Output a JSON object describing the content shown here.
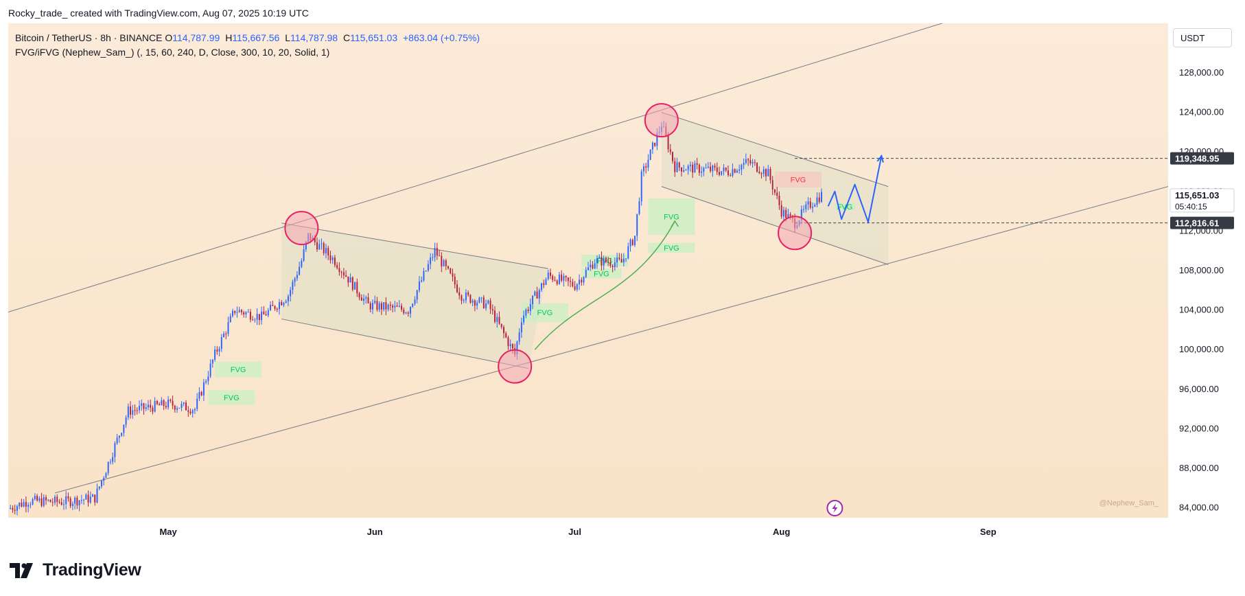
{
  "header": {
    "attribution": "Rocky_trade_ created with TradingView.com, Aug 07, 2025 10:19 UTC"
  },
  "legend": {
    "symbol": "Bitcoin / TetherUS · 8h · BINANCE",
    "open_label": "O",
    "open": "114,787.99",
    "high_label": "H",
    "high": "115,667.56",
    "low_label": "L",
    "low": "114,787.98",
    "close_label": "C",
    "close": "115,651.03",
    "change": "+863.04 (+0.75%)",
    "indicator": "FVG/iFVG (Nephew_Sam_) (, 15, 60, 240, D, Close, 300, 10, 20, Solid, 1)"
  },
  "currency": "USDT",
  "watermark": "@Nephew_Sam_",
  "brand": {
    "name": "TradingView"
  },
  "colors": {
    "background": "#fae9d4",
    "pane": "#ffffff",
    "up": "#2962ff",
    "down": "#b71c3a",
    "fvg_bull": "#c8f0c4",
    "fvg_bull_text": "#00c853",
    "fvg_bear": "#f6c9c0",
    "fvg_bear_text": "#f23645",
    "circle_fill": "#f4a8b4",
    "circle_stroke": "#e91e63",
    "channel_line": "#787b86",
    "projection": "#2962ff",
    "arrow_green": "#4caf50"
  },
  "chart_data": {
    "type": "candlestick",
    "title": "Bitcoin / TetherUS · 8h · BINANCE",
    "timeframe": "8h",
    "x_axis": {
      "labels": [
        "May",
        "Jun",
        "Jul",
        "Aug",
        "Sep"
      ],
      "range": [
        "2025-04-07",
        "2025-09-28"
      ]
    },
    "y_axis": {
      "ylim": [
        83000,
        133000
      ],
      "ticks": [
        84000,
        88000,
        92000,
        96000,
        100000,
        104000,
        108000,
        112000,
        116000,
        120000,
        124000,
        128000
      ],
      "tick_labels": [
        "84,000.00",
        "88,000.00",
        "92,000.00",
        "96,000.00",
        "100,000.00",
        "104,000.00",
        "108,000.00",
        "112,000.00",
        "116,000.00",
        "120,000.00",
        "124,000.00",
        "128,000.00"
      ]
    },
    "price_labels": [
      {
        "value": 119348.95,
        "text": "119,348.95",
        "style": "dark"
      },
      {
        "value": 115651.03,
        "text": "115,651.03",
        "style": "light",
        "sub": "05:40:15"
      },
      {
        "value": 112816.61,
        "text": "112,816.61",
        "style": "dark"
      }
    ],
    "horizontal_levels": [
      119348.95,
      112816.61
    ],
    "series_path": [
      [
        "2025-04-07",
        83900
      ],
      [
        "2025-04-10",
        84700
      ],
      [
        "2025-04-15",
        84600
      ],
      [
        "2025-04-20",
        85000
      ],
      [
        "2025-04-22",
        88500
      ],
      [
        "2025-04-25",
        93800
      ],
      [
        "2025-05-01",
        94500
      ],
      [
        "2025-05-05",
        94000
      ],
      [
        "2025-05-08",
        99500
      ],
      [
        "2025-05-11",
        104000
      ],
      [
        "2025-05-15",
        103300
      ],
      [
        "2025-05-19",
        105500
      ],
      [
        "2025-05-21",
        109000
      ],
      [
        "2025-05-22",
        111500
      ],
      [
        "2025-05-26",
        109000
      ],
      [
        "2025-05-31",
        104500
      ],
      [
        "2025-06-06",
        104000
      ],
      [
        "2025-06-10",
        110000
      ],
      [
        "2025-06-14",
        105500
      ],
      [
        "2025-06-18",
        104500
      ],
      [
        "2025-06-22",
        99500
      ],
      [
        "2025-06-23",
        103200
      ],
      [
        "2025-06-27",
        107500
      ],
      [
        "2025-07-01",
        106500
      ],
      [
        "2025-07-04",
        109000
      ],
      [
        "2025-07-08",
        108800
      ],
      [
        "2025-07-10",
        111500
      ],
      [
        "2025-07-11",
        117500
      ],
      [
        "2025-07-14",
        122800
      ],
      [
        "2025-07-16",
        118500
      ],
      [
        "2025-07-21",
        118200
      ],
      [
        "2025-07-24",
        118000
      ],
      [
        "2025-07-27",
        119000
      ],
      [
        "2025-07-30",
        117800
      ],
      [
        "2025-08-01",
        114000
      ],
      [
        "2025-08-03",
        112800
      ],
      [
        "2025-08-05",
        114500
      ],
      [
        "2025-08-07",
        115651
      ]
    ],
    "channels": [
      {
        "name": "ascending",
        "lines": [
          [
            [
              "2025-04-07",
              103800
            ],
            [
              "2025-09-07",
              135700
            ]
          ],
          [
            [
              "2025-04-14",
              85500
            ],
            [
              "2025-09-28",
              116500
            ]
          ]
        ]
      },
      {
        "name": "flag-1",
        "lines": [
          [
            [
              "2025-05-18",
              112800
            ],
            [
              "2025-06-27",
              108200
            ]
          ],
          [
            [
              "2025-05-18",
              103100
            ],
            [
              "2025-06-24",
              98100
            ]
          ]
        ]
      },
      {
        "name": "flag-2",
        "lines": [
          [
            [
              "2025-07-14",
              124000
            ],
            [
              "2025-08-17",
              116500
            ]
          ],
          [
            [
              "2025-07-14",
              116500
            ],
            [
              "2025-08-17",
              108600
            ]
          ]
        ]
      }
    ],
    "circles": [
      {
        "date": "2025-05-21",
        "price": 112300
      },
      {
        "date": "2025-06-22",
        "price": 98300
      },
      {
        "date": "2025-07-14",
        "price": 123200
      },
      {
        "date": "2025-08-03",
        "price": 111800
      }
    ],
    "fvg_zones": [
      {
        "label": "FVG",
        "kind": "bull",
        "from": "2025-05-08",
        "to": "2025-05-15",
        "low": 97200,
        "high": 98800
      },
      {
        "label": "FVG",
        "kind": "bull",
        "from": "2025-05-07",
        "to": "2025-05-14",
        "low": 94400,
        "high": 95900
      },
      {
        "label": "FVG",
        "kind": "bull",
        "from": "2025-06-23",
        "to": "2025-06-30",
        "low": 102800,
        "high": 104700
      },
      {
        "label": "FVG",
        "kind": "bull",
        "from": "2025-07-02",
        "to": "2025-07-09",
        "low": 108400,
        "high": 109600
      },
      {
        "label": "FVG",
        "kind": "bull",
        "from": "2025-07-02",
        "to": "2025-07-08",
        "low": 107200,
        "high": 108200
      },
      {
        "label": "FVG",
        "kind": "bull",
        "from": "2025-07-12",
        "to": "2025-07-19",
        "low": 111600,
        "high": 115300
      },
      {
        "label": "FVG",
        "kind": "bull",
        "from": "2025-07-12",
        "to": "2025-07-19",
        "low": 109800,
        "high": 110800
      },
      {
        "label": "FVG",
        "kind": "bear",
        "from": "2025-07-31",
        "to": "2025-08-07",
        "low": 116400,
        "high": 118000
      },
      {
        "label": "FVG",
        "kind": "bull",
        "from": "2025-08-09",
        "to": "2025-08-12",
        "low": 114100,
        "high": 114800
      }
    ],
    "projection": [
      [
        "2025-08-08",
        114500
      ],
      [
        "2025-08-09",
        116000
      ],
      [
        "2025-08-10",
        113200
      ],
      [
        "2025-08-12",
        116700
      ],
      [
        "2025-08-14",
        112900
      ],
      [
        "2025-08-16",
        119600
      ]
    ],
    "curved_arrow": [
      [
        "2025-06-25",
        100000
      ],
      [
        "2025-07-02",
        105500
      ],
      [
        "2025-07-10",
        105500
      ],
      [
        "2025-07-16",
        113000
      ]
    ],
    "legend": "none"
  }
}
